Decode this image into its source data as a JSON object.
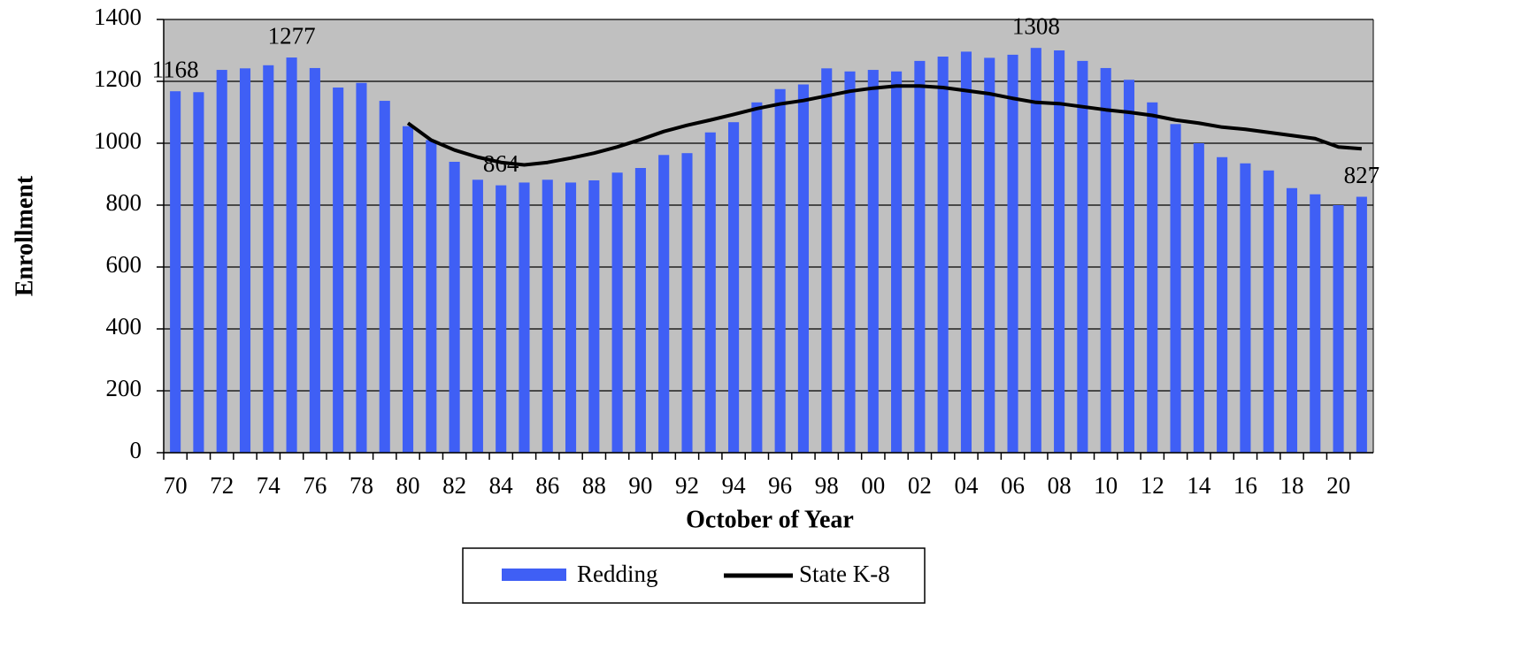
{
  "chart_data": {
    "type": "bar",
    "x_label": "October of Year",
    "y_label": "Enrollment",
    "categories": [
      "70",
      null,
      "72",
      null,
      "74",
      null,
      "76",
      null,
      "78",
      null,
      "80",
      null,
      "82",
      null,
      "84",
      null,
      "86",
      null,
      "88",
      null,
      "90",
      null,
      "92",
      null,
      "94",
      null,
      "96",
      null,
      "98",
      null,
      "00",
      null,
      "02",
      null,
      "04",
      null,
      "06",
      null,
      "08",
      null,
      "10",
      null,
      "12",
      null,
      "14",
      null,
      "16",
      null,
      "18",
      null,
      "20",
      null
    ],
    "series": [
      {
        "name": "Redding",
        "type": "bar",
        "color": "#3f5ff5",
        "values": [
          1168,
          1165,
          1237,
          1242,
          1252,
          1277,
          1243,
          1180,
          1195,
          1137,
          1055,
          1010,
          940,
          882,
          864,
          873,
          882,
          873,
          880,
          905,
          920,
          962,
          968,
          1035,
          1068,
          1132,
          1175,
          1190,
          1242,
          1232,
          1237,
          1232,
          1266,
          1280,
          1296,
          1276,
          1286,
          1308,
          1300,
          1266,
          1243,
          1205,
          1132,
          1062,
          1000,
          955,
          935,
          912,
          855,
          835,
          800,
          827
        ],
        "value_labels": [
          "1168",
          null,
          null,
          null,
          null,
          "1277",
          null,
          null,
          null,
          null,
          null,
          null,
          null,
          null,
          "864",
          null,
          null,
          null,
          null,
          null,
          null,
          null,
          null,
          null,
          null,
          null,
          null,
          null,
          null,
          null,
          null,
          null,
          null,
          null,
          null,
          null,
          null,
          "1308",
          null,
          null,
          null,
          null,
          null,
          null,
          null,
          null,
          null,
          null,
          null,
          null,
          null,
          "827"
        ]
      },
      {
        "name": "State K-8",
        "type": "line",
        "color": "#000000",
        "values": [
          null,
          null,
          null,
          null,
          null,
          null,
          null,
          null,
          null,
          null,
          1065,
          1010,
          978,
          955,
          938,
          930,
          938,
          952,
          968,
          988,
          1012,
          1038,
          1058,
          1075,
          1093,
          1112,
          1127,
          1138,
          1153,
          1168,
          1178,
          1185,
          1185,
          1180,
          1170,
          1160,
          1145,
          1132,
          1128,
          1118,
          1108,
          1100,
          1090,
          1075,
          1065,
          1052,
          1045,
          1035,
          1025,
          1015,
          988,
          982
        ]
      }
    ],
    "ylim": [
      0,
      1400
    ],
    "yticks": [
      0,
      200,
      400,
      600,
      800,
      1000,
      1200,
      1400
    ],
    "grid": true,
    "plot_background": "#c0c0c0",
    "legend": "bottom"
  }
}
